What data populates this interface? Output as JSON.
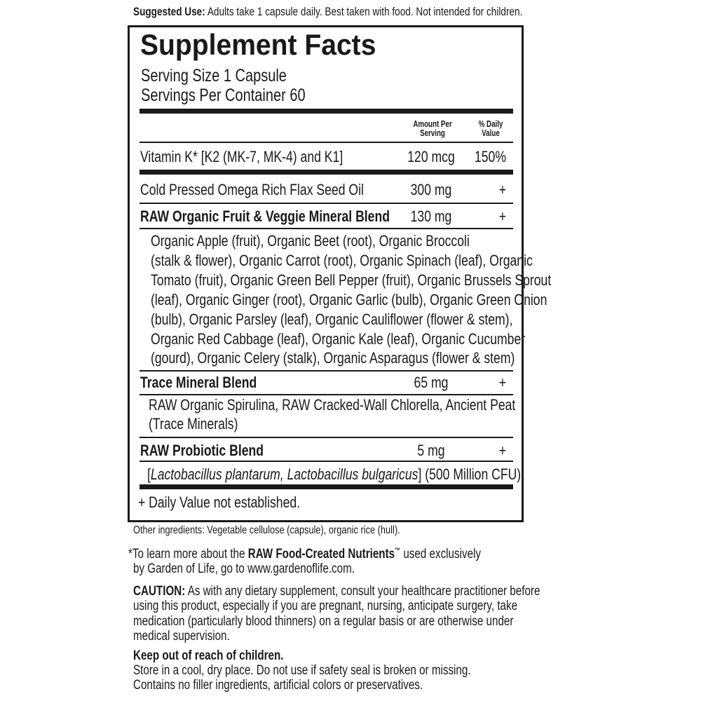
{
  "suggested_use": {
    "label": "Suggested Use:",
    "text": "Adults take 1 capsule daily. Best taken with food. Not intended for children."
  },
  "facts": {
    "title": "Supplement Facts",
    "serving_size": "Serving Size 1 Capsule",
    "servings_per_container": "Servings Per Container 60",
    "header": {
      "amount_line1": "Amount Per",
      "amount_line2": "Serving",
      "dv_line1": "% Daily",
      "dv_line2": "Value"
    },
    "rows": [
      {
        "name": "Vitamin K* [K2 (MK-7, MK-4) and K1]",
        "amount": "120 mcg",
        "dv": "150%"
      },
      {
        "name": "Cold Pressed Omega Rich Flax Seed Oil",
        "amount": "300 mg",
        "dv": "+"
      },
      {
        "name": "RAW Organic Fruit & Veggie Mineral Blend",
        "amount": "130 mg",
        "dv": "+",
        "detail": [
          "Organic Apple (fruit), Organic Beet (root), Organic Broccoli",
          "(stalk & flower), Organic Carrot (root), Organic Spinach (leaf), Organic",
          "Tomato (fruit), Organic Green Bell Pepper (fruit), Organic Brussels Sprout",
          "(leaf), Organic Ginger (root), Organic Garlic (bulb), Organic Green Onion",
          "(bulb), Organic Parsley (leaf), Organic Cauliflower (flower & stem),",
          "Organic Red Cabbage (leaf), Organic Kale (leaf), Organic Cucumber",
          "(gourd), Organic Celery (stalk), Organic Asparagus (flower & stem)"
        ]
      },
      {
        "name": "Trace Mineral Blend",
        "amount": "65 mg",
        "dv": "+",
        "detail": [
          "RAW Organic Spirulina, RAW Cracked-Wall Chlorella, Ancient Peat",
          "(Trace Minerals)"
        ]
      },
      {
        "name": "RAW Probiotic Blend",
        "amount": "5 mg",
        "dv": "+",
        "detail_italic": "Lactobacillus plantarum, Lactobacillus bulgaricus",
        "detail_rest": "(500 Million CFU)"
      }
    ],
    "dv_note": "+ Daily Value not established."
  },
  "other_ingredients": "Other ingredients: Vegetable cellulose (capsule), organic rice (hull).",
  "footnote": {
    "pre": "*To learn more about the ",
    "bold": "RAW Food-Created Nutrients",
    "tm": "™",
    "post": " used exclusively",
    "line2": "by Garden of Life, go to www.gardenoflife.com."
  },
  "caution": {
    "label": "CAUTION:",
    "lines": [
      " As with any dietary supplement, consult your healthcare practitioner before",
      "using this product, especially if you are pregnant, nursing, anticipate surgery, take",
      "medication (particularly blood thinners) on a regular basis or are otherwise under",
      "medical supervision."
    ]
  },
  "storage": {
    "heading": "Keep out of reach of children.",
    "lines": [
      "Store in a cool, dry place. Do not use if safety seal is broken or missing.",
      "Contains no filler ingredients, artificial colors or preservatives."
    ]
  }
}
